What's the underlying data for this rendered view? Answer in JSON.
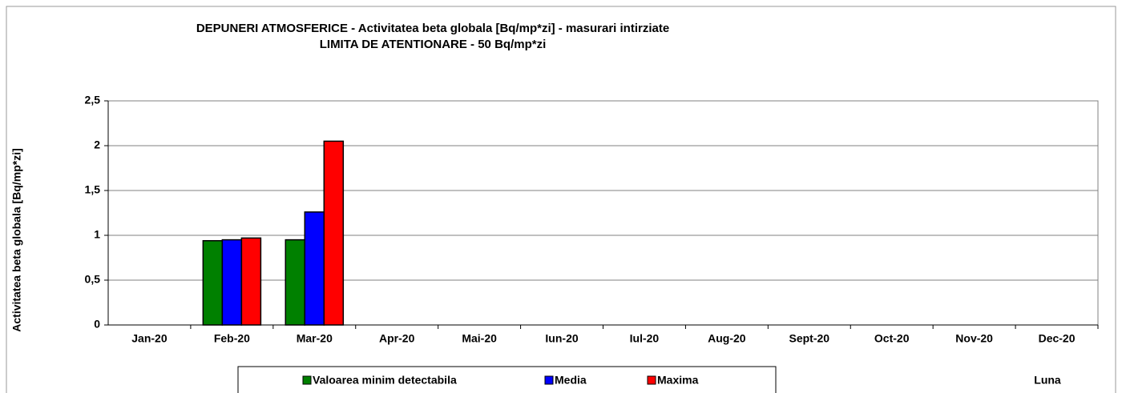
{
  "chart_data": {
    "type": "bar",
    "title": "DEPUNERI ATMOSFERICE - Activitatea beta globala [Bq/mp*zi] - masurari intirziate",
    "subtitle": "LIMITA DE ATENTIONARE - 50 Bq/mp*zi",
    "y_label": "Activitatea beta globala [Bq/mp*zi]",
    "x_label": "Luna",
    "categories": [
      "Jan-20",
      "Feb-20",
      "Mar-20",
      "Apr-20",
      "Mai-20",
      "Iun-20",
      "Iul-20",
      "Aug-20",
      "Sept-20",
      "Oct-20",
      "Nov-20",
      "Dec-20"
    ],
    "series": [
      {
        "name": "Valoarea minim detectabila",
        "color": "#008000",
        "values": [
          null,
          0.94,
          0.95,
          null,
          null,
          null,
          null,
          null,
          null,
          null,
          null,
          null
        ]
      },
      {
        "name": "Media",
        "color": "#0000ff",
        "values": [
          null,
          0.95,
          1.26,
          null,
          null,
          null,
          null,
          null,
          null,
          null,
          null,
          null
        ]
      },
      {
        "name": "Maxima",
        "color": "#ff0000",
        "values": [
          null,
          0.97,
          2.05,
          null,
          null,
          null,
          null,
          null,
          null,
          null,
          null,
          null
        ]
      }
    ],
    "ylim": [
      0,
      2.5
    ],
    "yticks": [
      0,
      {
        "value": 0.5,
        "label": "0,5"
      },
      1,
      {
        "value": 1.5,
        "label": "1,5"
      },
      2,
      {
        "value": 2.5,
        "label": "2,5"
      }
    ],
    "grid": true
  }
}
